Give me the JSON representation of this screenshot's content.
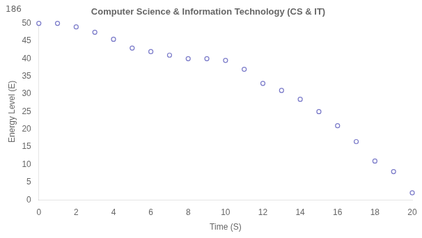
{
  "chart_data": {
    "type": "scatter",
    "title": "Computer Science & Information Technology (CS & IT)",
    "annotations": [
      "186"
    ],
    "x": [
      0,
      1,
      2,
      3,
      4,
      5,
      6,
      7,
      8,
      9,
      10,
      11,
      12,
      13,
      14,
      15,
      16,
      17,
      18,
      19,
      20
    ],
    "values": [
      50,
      50,
      49,
      47.5,
      45.5,
      43,
      42,
      41,
      40,
      40,
      39.5,
      37,
      33,
      31,
      28.5,
      25,
      21,
      16.5,
      11,
      8,
      2
    ],
    "xlabel": "Time (S)",
    "ylabel": "Energy Level (E)",
    "xlim": [
      0,
      20
    ],
    "ylim": [
      0,
      50
    ],
    "xticks": [
      0,
      2,
      4,
      6,
      8,
      10,
      12,
      14,
      16,
      18,
      20
    ],
    "yticks": [
      0,
      5,
      10,
      15,
      20,
      25,
      30,
      35,
      40,
      45,
      50
    ],
    "color": "#7878c8",
    "marker": "circle",
    "grid": false
  }
}
